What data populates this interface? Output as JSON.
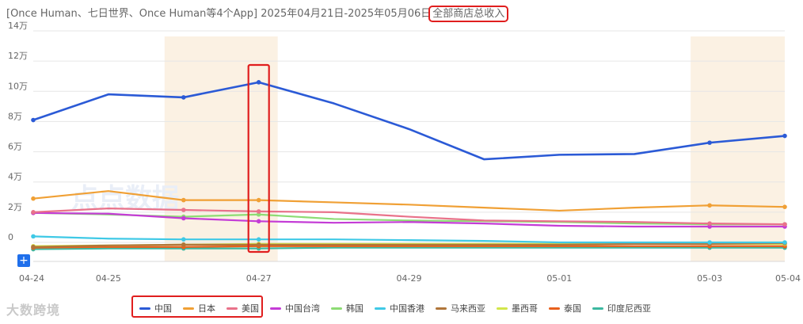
{
  "title": {
    "prefix": "[Once Human、七日世界、Once Human等4个App] 2025年04月21日-2025年05月06日",
    "highlight": "全部商店总收入"
  },
  "add_button": "+",
  "watermark_center": "点点数据",
  "watermark_bottom": "大数跨境",
  "chart_data": {
    "type": "line",
    "x": [
      "04-24",
      "04-25",
      "04-26",
      "04-27",
      "04-28",
      "04-29",
      "04-30",
      "05-01",
      "05-02",
      "05-03",
      "05-04"
    ],
    "x_tick_labels": [
      "04-24",
      "04-25",
      "04-27",
      "04-29",
      "05-01",
      "05-03",
      "05-04"
    ],
    "y_ticks": [
      0,
      20000,
      40000,
      60000,
      80000,
      100000,
      120000,
      140000
    ],
    "y_tick_labels": [
      "0",
      "2万",
      "4万",
      "6万",
      "8万",
      "10万",
      "12万",
      "14万"
    ],
    "ylim": [
      -20000,
      140000
    ],
    "shaded_ranges": [
      [
        "04-26",
        "04-27"
      ],
      [
        "05-03",
        "05-04"
      ]
    ],
    "highlight_x": "04-27",
    "grid": true,
    "legend_position": "bottom",
    "series": [
      {
        "name": "中国",
        "color": "#2b5ad6",
        "values": [
          81000,
          98000,
          96000,
          106000,
          92000,
          75000,
          55000,
          58000,
          58500,
          66000,
          70500
        ]
      },
      {
        "name": "日本",
        "color": "#f0a035",
        "values": [
          29000,
          34000,
          28000,
          28000,
          26500,
          25000,
          23000,
          21000,
          23000,
          24500,
          23500
        ]
      },
      {
        "name": "美国",
        "color": "#e9728a",
        "values": [
          20000,
          22500,
          21500,
          20500,
          20000,
          17000,
          14500,
          14000,
          13500,
          12500,
          12000
        ]
      },
      {
        "name": "中国台湾",
        "color": "#c43cd6",
        "values": [
          19500,
          19000,
          16000,
          14000,
          13000,
          13500,
          12500,
          11000,
          10500,
          10500,
          10500
        ]
      },
      {
        "name": "韩国",
        "color": "#8ddc74",
        "values": [
          19500,
          18500,
          17000,
          18500,
          15500,
          14500,
          14000,
          13500,
          12500,
          12000,
          12000
        ]
      },
      {
        "name": "中国香港",
        "color": "#3fc9e6",
        "values": [
          4000,
          2500,
          2000,
          2000,
          2000,
          1500,
          1000,
          0,
          0,
          0,
          0
        ]
      },
      {
        "name": "马来西亚",
        "color": "#b0763a",
        "values": [
          -3000,
          -2000,
          -1500,
          -1500,
          -1500,
          -1500,
          -1500,
          -1500,
          -1000,
          -1000,
          -500
        ]
      },
      {
        "name": "墨西哥",
        "color": "#d2e64a",
        "values": [
          -2500,
          -2000,
          -1500,
          -1000,
          -1000,
          -1000,
          -1000,
          -1000,
          -1000,
          -1000,
          -1000
        ]
      },
      {
        "name": "泰国",
        "color": "#e8601c",
        "values": [
          -3500,
          -3000,
          -3000,
          -2500,
          -2500,
          -2500,
          -2500,
          -2500,
          -2500,
          -2500,
          -2500
        ]
      },
      {
        "name": "印度尼西亚",
        "color": "#3cb8a0",
        "values": [
          -4500,
          -4000,
          -4000,
          -4000,
          -3500,
          -3500,
          -3500,
          -3500,
          -3500,
          -3500,
          -3500
        ]
      }
    ]
  }
}
